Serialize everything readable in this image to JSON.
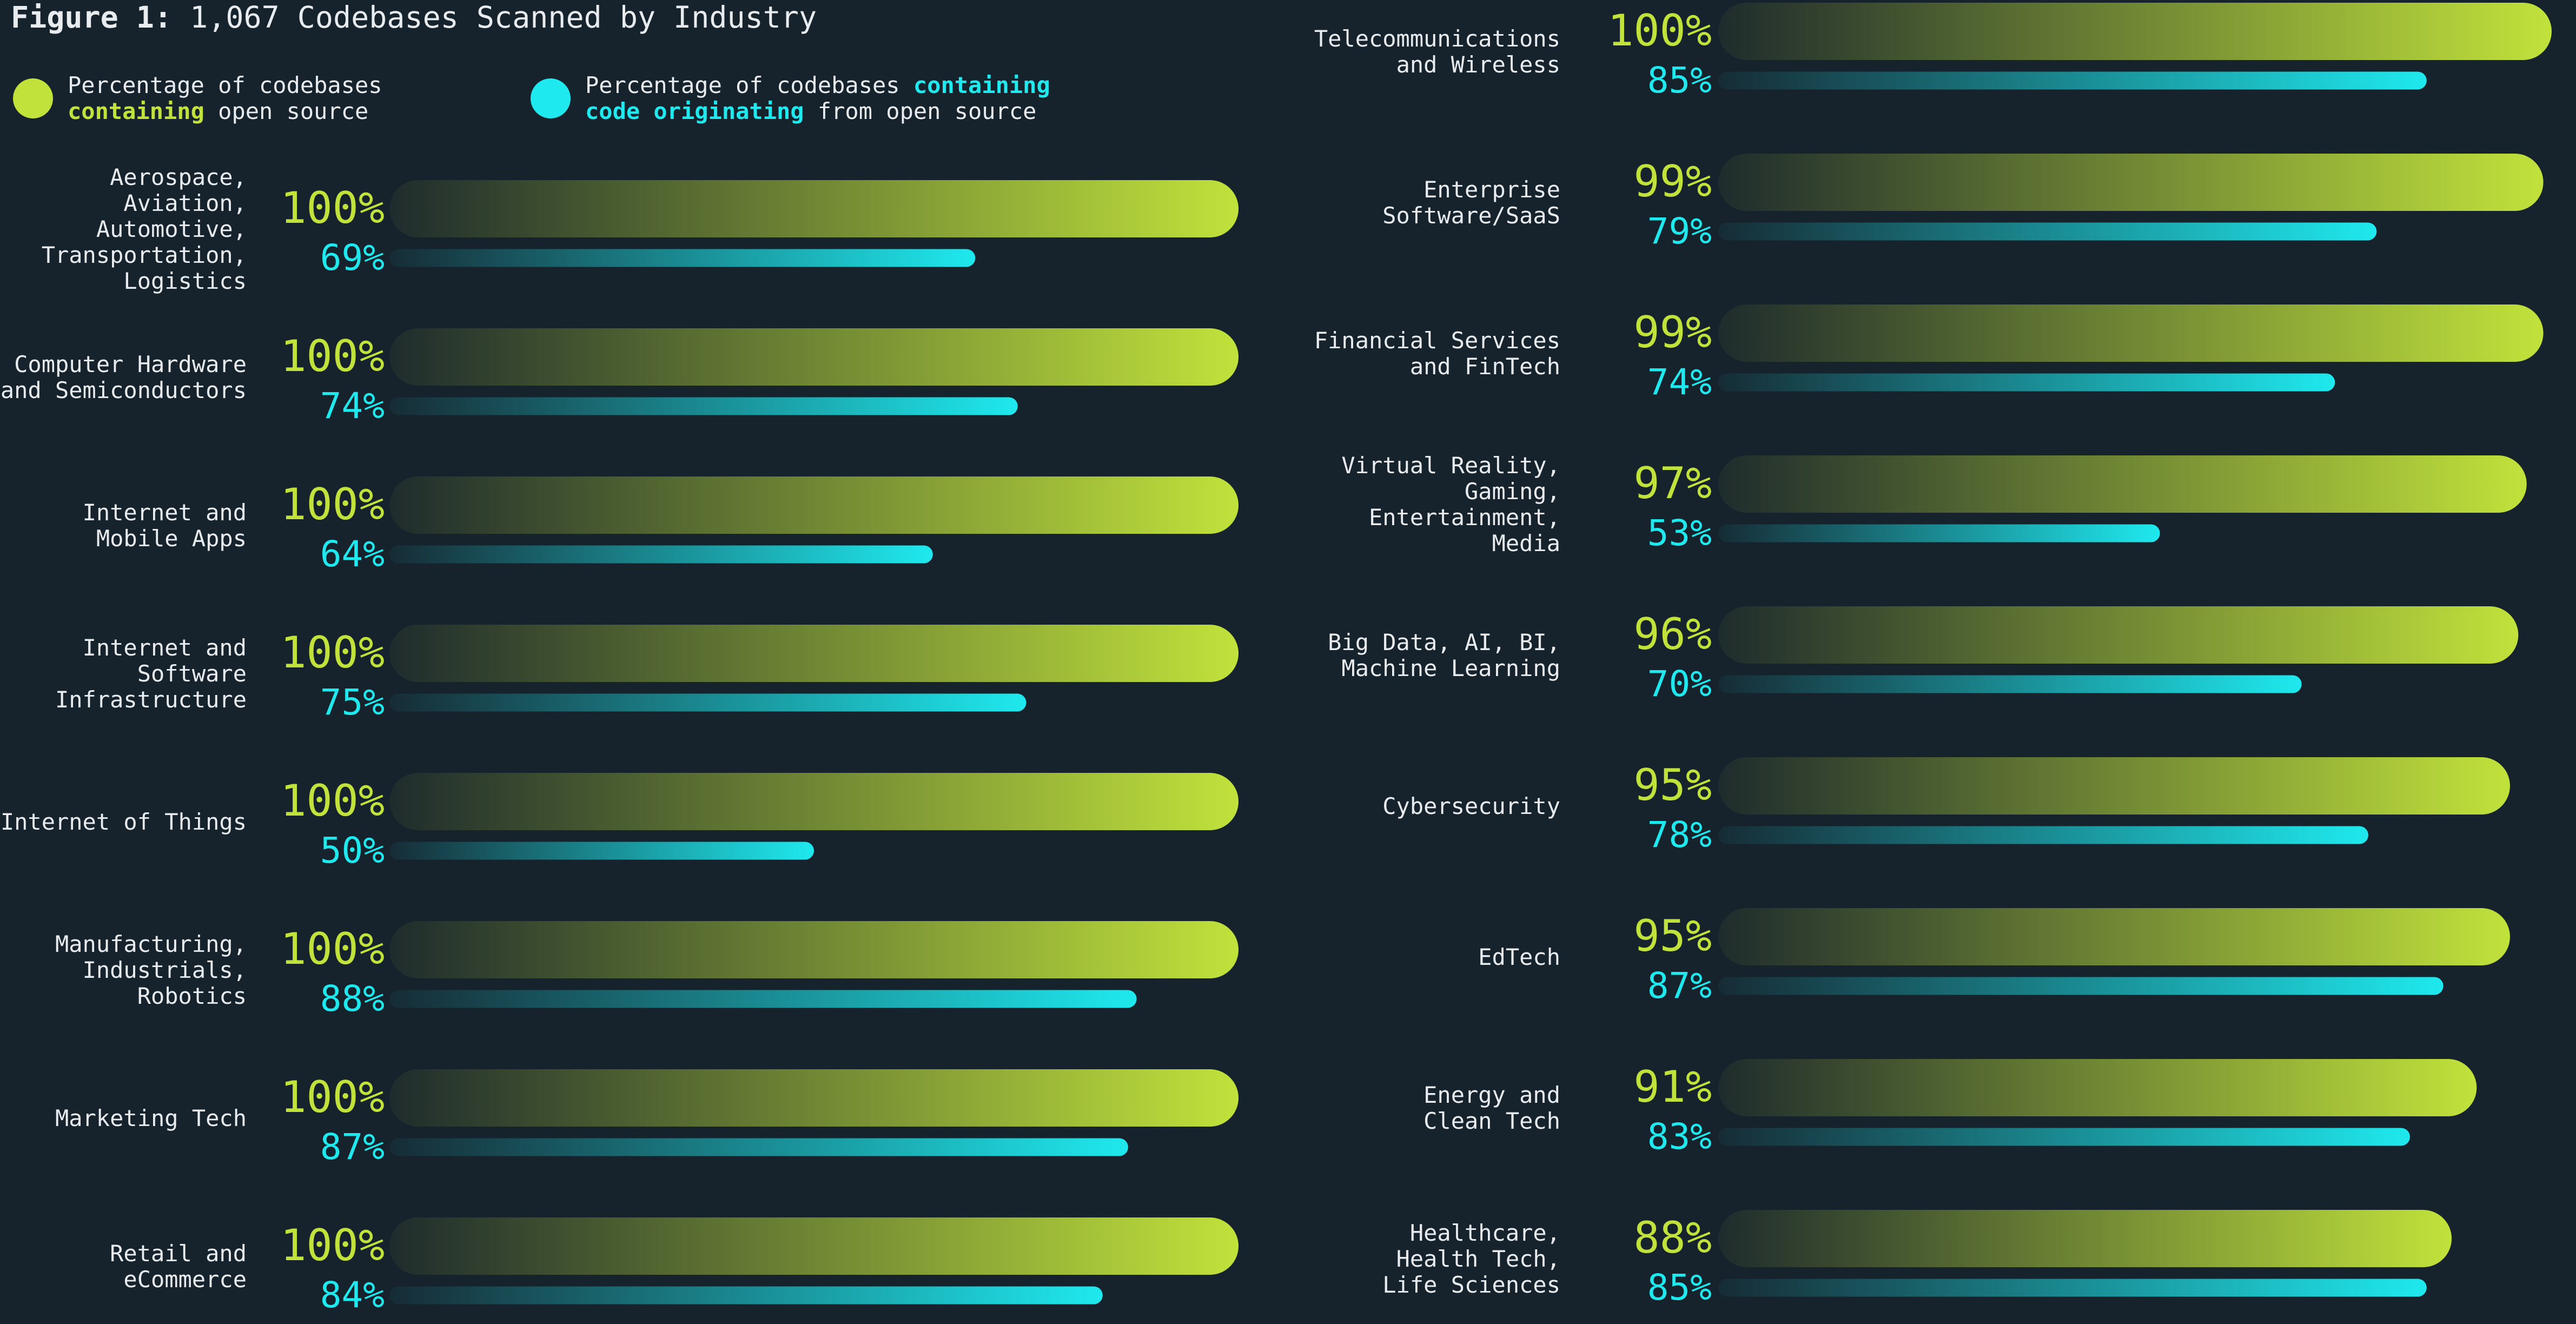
{
  "chart_data": {
    "type": "bar",
    "orientation": "horizontal",
    "title": "Figure 1: 1,067 Codebases Scanned by Industry",
    "categories": [
      "Aerospace,\nAviation,\nAutomotive,\nTransportation,\nLogistics",
      "Computer Hardware\nand Semiconductors",
      "Internet and\nMobile Apps",
      "Internet and\nSoftware\nInfrastructure",
      "Internet of Things",
      "Manufacturing,\nIndustrials,\nRobotics",
      "Marketing Tech",
      "Retail and\neCommerce",
      "Telecommunications\nand Wireless",
      "Enterprise\nSoftware/SaaS",
      "Financial Services\nand FinTech",
      "Virtual Reality,\nGaming,\nEntertainment,\nMedia",
      "Big Data, AI, BI,\nMachine Learning",
      "Cybersecurity",
      "EdTech",
      "Energy and\nClean Tech",
      "Healthcare,\nHealth Tech,\nLife Sciences"
    ],
    "series": [
      {
        "name": "Percentage of codebases\ncontaining open source",
        "highlight": "containing",
        "color": "#c1e23b",
        "values": [
          100,
          100,
          100,
          100,
          100,
          100,
          100,
          100,
          100,
          99,
          99,
          97,
          96,
          95,
          95,
          91,
          88
        ],
        "value_labels": [
          "100%",
          "100%",
          "100%",
          "100%",
          "100%",
          "100%",
          "100%",
          "100%",
          "100%",
          "99%",
          "99%",
          "97%",
          "96%",
          "95%",
          "95%",
          "91%",
          "88%"
        ]
      },
      {
        "name": "Percentage of codebases containing\ncode originating from open source",
        "highlight": "containing\ncode originating",
        "color": "#1ee9ee",
        "values": [
          69,
          74,
          64,
          75,
          50,
          88,
          87,
          84,
          85,
          79,
          74,
          53,
          70,
          78,
          87,
          83,
          85
        ],
        "value_labels": [
          "69%",
          "74%",
          "64%",
          "75%",
          "50%",
          "88%",
          "87%",
          "84%",
          "85%",
          "79%",
          "74%",
          "53%",
          "70%",
          "78%",
          "87%",
          "83%",
          "85%"
        ]
      }
    ],
    "xlim": [
      0,
      100
    ]
  }
}
